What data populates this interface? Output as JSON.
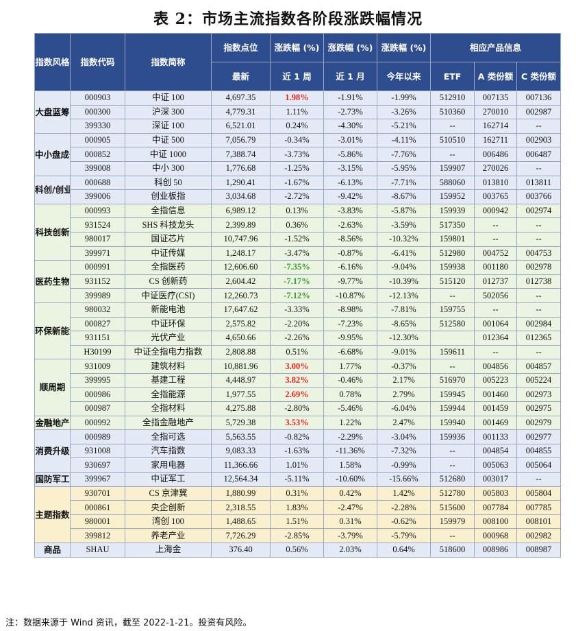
{
  "title": "表 2：市场主流指数各阶段涨跌幅情况",
  "header": {
    "style": "指数风格",
    "code": "指数代码",
    "name": "指数简称",
    "point": "指数点位",
    "point_sub": "最新",
    "chg1": "涨跌幅 (%)",
    "chg1_sub": "近 1 周",
    "chg2": "涨跌幅 (%)",
    "chg2_sub": "近 1 月",
    "chg3": "涨跌幅 (%)",
    "chg3_sub": "今年以来",
    "product": "相应产品信息",
    "etf": "ETF",
    "a_share": "A 类份额",
    "c_share": "C 类份额"
  },
  "groups": [
    {
      "name": "大盘蓝筹",
      "rows": [
        {
          "code": "000903",
          "name": "中证 100",
          "point": "4,697.35",
          "w1": "1.98%",
          "m1": "-1.91%",
          "ytd": "-1.99%",
          "etf": "512910",
          "a": "007135",
          "c": "007136"
        },
        {
          "code": "000300",
          "name": "沪深 300",
          "point": "4,779.31",
          "w1": "1.11%",
          "m1": "-2.73%",
          "ytd": "-3.26%",
          "etf": "510360",
          "a": "270010",
          "c": "002987"
        },
        {
          "code": "399330",
          "name": "深证 100",
          "point": "6,521.01",
          "w1": "0.24%",
          "m1": "-4.30%",
          "ytd": "-5.21%",
          "etf": "--",
          "a": "162714",
          "c": "--"
        }
      ]
    },
    {
      "name": "中小盘成长",
      "rows": [
        {
          "code": "000905",
          "name": "中证 500",
          "point": "7,056.79",
          "w1": "-0.34%",
          "m1": "-3.01%",
          "ytd": "-4.11%",
          "etf": "510510",
          "a": "162711",
          "c": "002903"
        },
        {
          "code": "000852",
          "name": "中证 1000",
          "point": "7,388.74",
          "w1": "-3.73%",
          "m1": "-5.86%",
          "ytd": "-7.76%",
          "etf": "--",
          "a": "006486",
          "c": "006487"
        },
        {
          "code": "399008",
          "name": "中小 300",
          "point": "1,776.68",
          "w1": "-1.25%",
          "m1": "-3.15%",
          "ytd": "-5.95%",
          "etf": "159907",
          "a": "270026",
          "c": "--"
        }
      ]
    },
    {
      "name": "科创/创业板",
      "rows": [
        {
          "code": "000688",
          "name": "科创 50",
          "point": "1,290.41",
          "w1": "-1.67%",
          "m1": "-6.13%",
          "ytd": "-7.71%",
          "etf": "588060",
          "a": "013810",
          "c": "013811"
        },
        {
          "code": "399006",
          "name": "创业板指",
          "point": "3,034.68",
          "w1": "-2.72%",
          "m1": "-9.42%",
          "ytd": "-8.67%",
          "etf": "159952",
          "a": "003765",
          "c": "003766"
        }
      ]
    },
    {
      "name": "科技创新",
      "rows": [
        {
          "code": "000993",
          "name": "全指信息",
          "point": "6,989.12",
          "w1": "0.13%",
          "m1": "-3.83%",
          "ytd": "-5.87%",
          "etf": "159939",
          "a": "000942",
          "c": "002974"
        },
        {
          "code": "931524",
          "name": "SHS 科技龙头",
          "point": "2,399.89",
          "w1": "0.36%",
          "m1": "-2.63%",
          "ytd": "-3.59%",
          "etf": "517350",
          "a": "--",
          "c": "--"
        },
        {
          "code": "980017",
          "name": "国证芯片",
          "point": "10,747.96",
          "w1": "-1.52%",
          "m1": "-8.56%",
          "ytd": "-10.32%",
          "etf": "159801",
          "a": "--",
          "c": "--"
        },
        {
          "code": "399971",
          "name": "中证传媒",
          "point": "1,248.17",
          "w1": "-3.47%",
          "m1": "-0.87%",
          "ytd": "-6.41%",
          "etf": "512980",
          "a": "004752",
          "c": "004753"
        }
      ]
    },
    {
      "name": "医药生物",
      "rows": [
        {
          "code": "000991",
          "name": "全指医药",
          "point": "12,606.60",
          "w1": "-7.35%",
          "m1": "-6.16%",
          "ytd": "-9.04%",
          "etf": "159938",
          "a": "001180",
          "c": "002978"
        },
        {
          "code": "931152",
          "name": "CS 创新药",
          "point": "2,604.42",
          "w1": "-7.17%",
          "m1": "-9.77%",
          "ytd": "-10.39%",
          "etf": "515120",
          "a": "012737",
          "c": "012738"
        },
        {
          "code": "399989",
          "name": "中证医疗(CSI)",
          "point": "12,260.73",
          "w1": "-7.12%",
          "m1": "-10.87%",
          "ytd": "-12.13%",
          "etf": "--",
          "a": "502056",
          "c": "--"
        }
      ]
    },
    {
      "name": "环保新能源",
      "rows": [
        {
          "code": "980032",
          "name": "新能电池",
          "point": "17,647.62",
          "w1": "-3.33%",
          "m1": "-8.98%",
          "ytd": "-7.81%",
          "etf": "159755",
          "a": "--",
          "c": "--"
        },
        {
          "code": "000827",
          "name": "中证环保",
          "point": "2,575.82",
          "w1": "-2.20%",
          "m1": "-7.23%",
          "ytd": "-8.65%",
          "etf": "512580",
          "a": "001064",
          "c": "002984"
        },
        {
          "code": "931151",
          "name": "光伏产业",
          "point": "4,650.66",
          "w1": "-2.26%",
          "m1": "-9.95%",
          "ytd": "-12.30%",
          "etf": "",
          "a": "012364",
          "c": "012365"
        },
        {
          "code": "H30199",
          "name": "中证全指电力指数",
          "point": "2,808.88",
          "w1": "0.51%",
          "m1": "-6.68%",
          "ytd": "-9.01%",
          "etf": "159611",
          "a": "--",
          "c": "--"
        }
      ]
    },
    {
      "name": "顺周期",
      "rows": [
        {
          "code": "931009",
          "name": "建筑材料",
          "point": "10,881.96",
          "w1": "3.00%",
          "m1": "1.77%",
          "ytd": "-0.37%",
          "etf": "--",
          "a": "004856",
          "c": "004857"
        },
        {
          "code": "399995",
          "name": "基建工程",
          "point": "4,448.97",
          "w1": "3.82%",
          "m1": "-0.46%",
          "ytd": "2.17%",
          "etf": "516970",
          "a": "005223",
          "c": "005224"
        },
        {
          "code": "000986",
          "name": "全指能源",
          "point": "1,977.55",
          "w1": "2.69%",
          "m1": "0.78%",
          "ytd": "2.79%",
          "etf": "159945",
          "a": "001460",
          "c": "002973"
        },
        {
          "code": "000987",
          "name": "全指材料",
          "point": "4,275.88",
          "w1": "-2.80%",
          "m1": "-5.46%",
          "ytd": "-6.04%",
          "etf": "159944",
          "a": "001459",
          "c": "002975"
        }
      ]
    },
    {
      "name": "金融地产",
      "rows": [
        {
          "code": "000992",
          "name": "全指金融地产",
          "point": "5,729.38",
          "w1": "3.53%",
          "m1": "1.22%",
          "ytd": "2.47%",
          "etf": "159940",
          "a": "001469",
          "c": "002979"
        }
      ]
    },
    {
      "name": "消费升级",
      "rows": [
        {
          "code": "000989",
          "name": "全指可选",
          "point": "5,563.55",
          "w1": "-0.82%",
          "m1": "-2.29%",
          "ytd": "-3.04%",
          "etf": "159936",
          "a": "001133",
          "c": "002977"
        },
        {
          "code": "931008",
          "name": "汽车指数",
          "point": "9,083.33",
          "w1": "-1.63%",
          "m1": "-11.36%",
          "ytd": "-7.32%",
          "etf": "--",
          "a": "004854",
          "c": "004855"
        },
        {
          "code": "930697",
          "name": "家用电器",
          "point": "11,366.66",
          "w1": "1.01%",
          "m1": "1.58%",
          "ytd": "-0.99%",
          "etf": "--",
          "a": "005063",
          "c": "005064"
        }
      ]
    },
    {
      "name": "国防军工",
      "rows": [
        {
          "code": "399967",
          "name": "中证军工",
          "point": "12,564.34",
          "w1": "-5.11%",
          "m1": "-10.60%",
          "ytd": "-15.66%",
          "etf": "512680",
          "a": "003017",
          "c": "--"
        }
      ]
    },
    {
      "name": "主题指数",
      "rows": [
        {
          "code": "930701",
          "name": "CS 京津冀",
          "point": "1,880.99",
          "w1": "0.31%",
          "m1": "0.42%",
          "ytd": "1.42%",
          "etf": "512780",
          "a": "005803",
          "c": "005804"
        },
        {
          "code": "000861",
          "name": "央企创新",
          "point": "2,318.55",
          "w1": "1.83%",
          "m1": "-2.47%",
          "ytd": "-2.28%",
          "etf": "515600",
          "a": "007784",
          "c": "007785"
        },
        {
          "code": "980001",
          "name": "湾创 100",
          "point": "1,488.65",
          "w1": "1.51%",
          "m1": "0.31%",
          "ytd": "-0.62%",
          "etf": "159979",
          "a": "008100",
          "c": "008101"
        },
        {
          "code": "399812",
          "name": "养老产业",
          "point": "7,726.29",
          "w1": "-2.85%",
          "m1": "-3.79%",
          "ytd": "-5.79%",
          "etf": "--",
          "a": "000968",
          "c": "002982"
        }
      ]
    },
    {
      "name": "商品",
      "rows": [
        {
          "code": "SHAU",
          "name": "上海金",
          "point": "376.40",
          "w1": "0.56%",
          "m1": "2.03%",
          "ytd": "0.64%",
          "etf": "518600",
          "a": "008986",
          "c": "008987"
        }
      ]
    }
  ],
  "highlight": {
    "red": [
      "000903",
      "931009",
      "399995",
      "000986",
      "000992"
    ],
    "green": [
      "000991",
      "931152",
      "399989"
    ]
  },
  "colors": {
    "header_bg": "#2e4d8f",
    "row_blue": "#e3eaf6",
    "row_green": "#eaf4e0",
    "row_yellow": "#fbf0cd",
    "gain_red": "#e8231f",
    "drop_green": "#3a9b32"
  },
  "row_tints": [
    "blue",
    "blue",
    "blue",
    "green",
    "green",
    "green",
    "green",
    "green",
    "blue",
    "blue",
    "yellow",
    "blue"
  ],
  "note": "注：数据来源于 Wind 资讯，截至 2022-1-21。投资有风险。"
}
